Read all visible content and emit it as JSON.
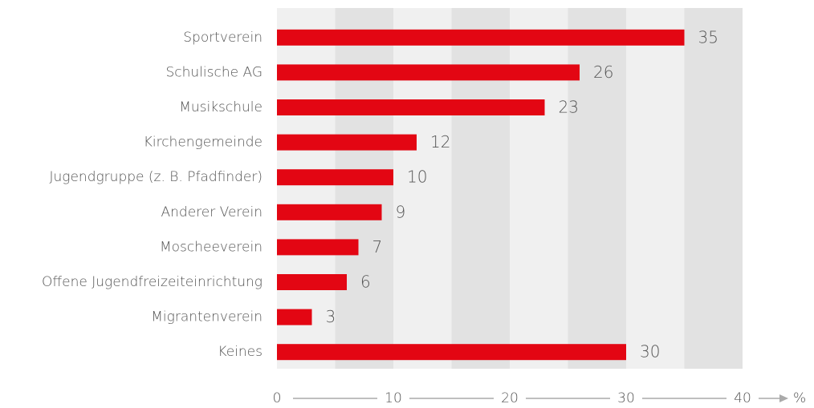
{
  "chart_data": {
    "type": "bar",
    "orientation": "horizontal",
    "categories": [
      "Sportverein",
      "Schulische AG",
      "Musikschule",
      "Kirchengemeinde",
      "Jugendgruppe (z. B. Pfadfinder)",
      "Anderer Verein",
      "Moscheeverein",
      "Offene Jugendfreizeiteinrichtung",
      "Migrantenverein",
      "Keines"
    ],
    "values": [
      35,
      26,
      23,
      12,
      10,
      9,
      7,
      6,
      3,
      30
    ],
    "color": "#e30613",
    "xlim": [
      0,
      40
    ],
    "xticks": [
      0,
      10,
      20,
      30,
      40
    ],
    "x_label": "%",
    "grid": true
  }
}
